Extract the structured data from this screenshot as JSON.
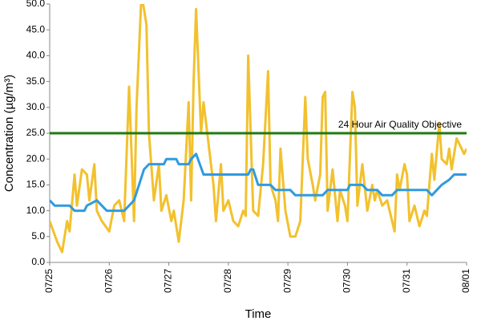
{
  "chart_data": {
    "type": "line",
    "xlabel": "Time",
    "ylabel": "Concentration (µg/m³)",
    "xlim": [
      0,
      168
    ],
    "xticks": [
      {
        "value": 0,
        "label": "07/25"
      },
      {
        "value": 24,
        "label": "07/26"
      },
      {
        "value": 48,
        "label": "07/27"
      },
      {
        "value": 72,
        "label": "07/28"
      },
      {
        "value": 96,
        "label": "07/29"
      },
      {
        "value": 120,
        "label": "07/30"
      },
      {
        "value": 144,
        "label": "07/31"
      },
      {
        "value": 168,
        "label": "08/01"
      }
    ],
    "ylim": [
      0,
      50
    ],
    "yticks": [
      {
        "value": 0,
        "label": "0.0"
      },
      {
        "value": 5,
        "label": "5.0"
      },
      {
        "value": 10,
        "label": "10.0"
      },
      {
        "value": 15,
        "label": "15.0"
      },
      {
        "value": 20,
        "label": "20.0"
      },
      {
        "value": 25,
        "label": "25.0"
      },
      {
        "value": 30,
        "label": "30.0"
      },
      {
        "value": 35,
        "label": "35.0"
      },
      {
        "value": 40,
        "label": "40.0"
      },
      {
        "value": 45,
        "label": "45.0"
      },
      {
        "value": 50,
        "label": "50.0"
      }
    ],
    "grid": false,
    "reference_line": {
      "value": 25,
      "label": "24 Hour Air Quality Objective",
      "color": "#1f7a12"
    },
    "series": [
      {
        "color": "#f2c12e",
        "x": [
          0,
          3,
          5,
          7,
          8,
          10,
          11,
          13,
          15,
          16,
          18,
          19,
          21,
          24,
          26,
          28,
          30,
          32,
          34,
          35,
          37,
          39,
          40,
          42,
          44,
          45,
          47,
          49,
          50,
          52,
          54,
          56,
          57,
          58,
          59,
          61,
          62,
          64,
          66,
          67,
          69,
          70,
          72,
          74,
          76,
          78,
          79,
          80,
          82,
          84,
          86,
          88,
          89,
          91,
          92,
          93,
          95,
          97,
          99,
          101,
          103,
          104,
          106,
          107,
          109,
          110,
          111,
          112,
          114,
          116,
          117,
          119,
          120,
          122,
          123,
          124,
          126,
          128,
          130,
          131,
          132,
          134,
          136,
          137,
          139,
          140,
          141,
          143,
          144,
          145,
          147,
          149,
          151,
          152,
          154,
          155,
          157,
          158,
          160,
          161,
          162,
          164,
          166,
          167,
          168
        ],
        "values": [
          8,
          4,
          2,
          8,
          6,
          17,
          11,
          18,
          17,
          12,
          19,
          10,
          8,
          6,
          11,
          12,
          8,
          34,
          8,
          30,
          52,
          46,
          25,
          12,
          19,
          10,
          13,
          8,
          10,
          4,
          12,
          31,
          12,
          35,
          49,
          25,
          31,
          23,
          15,
          8,
          19,
          10,
          12,
          8,
          7,
          10,
          9,
          40,
          10,
          9,
          19,
          37,
          15,
          12,
          8,
          22,
          10,
          5,
          5,
          8,
          32,
          20,
          15,
          12,
          17,
          32,
          33,
          10,
          18,
          8,
          14,
          11,
          8,
          33,
          30,
          11,
          19,
          10,
          15,
          12,
          14,
          11,
          12,
          10,
          6,
          17,
          14,
          19,
          17,
          8,
          11,
          7,
          10,
          9,
          21,
          16,
          27,
          20,
          19,
          22,
          18,
          24,
          22,
          21,
          22
        ]
      },
      {
        "color": "#2f9be0",
        "x": [
          0,
          2,
          8,
          10,
          14,
          15,
          19,
          21,
          23,
          30,
          32,
          34,
          36,
          38,
          40,
          46,
          47,
          51,
          52,
          56,
          57,
          59,
          62,
          80,
          81,
          82,
          84,
          89,
          91,
          97,
          99,
          110,
          112,
          120,
          121,
          126,
          128,
          132,
          134,
          138,
          140,
          152,
          154,
          156,
          158,
          161,
          163,
          168
        ],
        "values": [
          12,
          11,
          11,
          10,
          10,
          11,
          12,
          11,
          10,
          10,
          11,
          12,
          15,
          18,
          19,
          19,
          20,
          20,
          19,
          19,
          20,
          21,
          17,
          17,
          18,
          18,
          15,
          15,
          14,
          14,
          13,
          13,
          14,
          14,
          15,
          15,
          14,
          14,
          13,
          13,
          14,
          14,
          13,
          14,
          15,
          16,
          17,
          17
        ]
      }
    ]
  }
}
